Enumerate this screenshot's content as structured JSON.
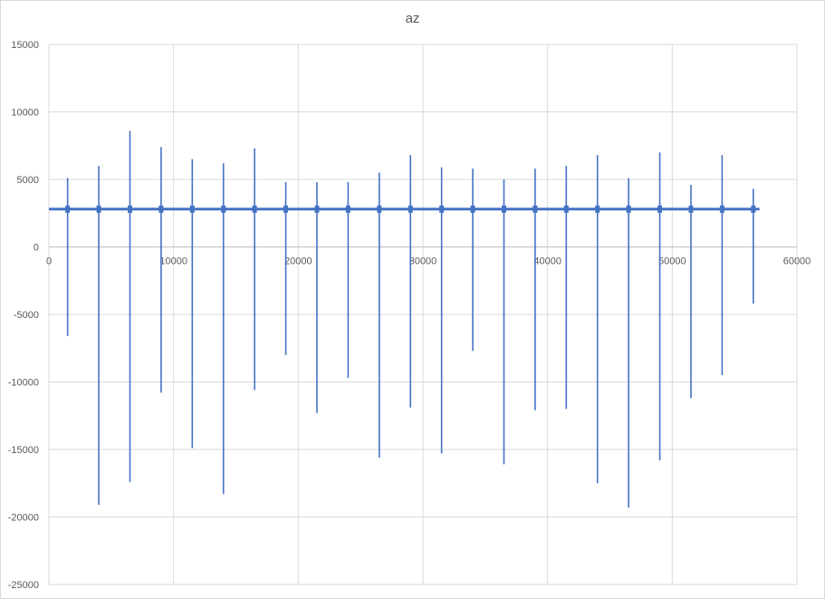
{
  "chart_data": {
    "type": "line",
    "title": "az",
    "xlabel": "",
    "ylabel": "",
    "xlim": [
      0,
      60000
    ],
    "ylim": [
      -25000,
      15000
    ],
    "x_ticks": [
      0,
      10000,
      20000,
      30000,
      40000,
      50000,
      60000
    ],
    "y_ticks": [
      15000,
      10000,
      5000,
      0,
      -5000,
      -10000,
      -15000,
      -20000,
      -25000
    ],
    "grid": true,
    "legend": "none",
    "color": "#4472c4",
    "baseline_value": 2800,
    "x_range": [
      0,
      57000
    ],
    "spikes": [
      {
        "x": 1500,
        "max": 5100,
        "min": -6600
      },
      {
        "x": 4000,
        "max": 6000,
        "min": -19100
      },
      {
        "x": 6500,
        "max": 8600,
        "min": -17400
      },
      {
        "x": 9000,
        "max": 7400,
        "min": -10800
      },
      {
        "x": 11500,
        "max": 6500,
        "min": -14900
      },
      {
        "x": 14000,
        "max": 6200,
        "min": -18300
      },
      {
        "x": 16500,
        "max": 7300,
        "min": -10600
      },
      {
        "x": 19000,
        "max": 4800,
        "min": -8000
      },
      {
        "x": 21500,
        "max": 4800,
        "min": -12300
      },
      {
        "x": 24000,
        "max": 4800,
        "min": -9700
      },
      {
        "x": 26500,
        "max": 5500,
        "min": -15600
      },
      {
        "x": 29000,
        "max": 6800,
        "min": -11900
      },
      {
        "x": 31500,
        "max": 5900,
        "min": -15300
      },
      {
        "x": 34000,
        "max": 5800,
        "min": -7700
      },
      {
        "x": 36500,
        "max": 5000,
        "min": -16100
      },
      {
        "x": 39000,
        "max": 5800,
        "min": -12100
      },
      {
        "x": 41500,
        "max": 6000,
        "min": -12000
      },
      {
        "x": 44000,
        "max": 6800,
        "min": -17500
      },
      {
        "x": 46500,
        "max": 5100,
        "min": -19300
      },
      {
        "x": 49000,
        "max": 7000,
        "min": -15800
      },
      {
        "x": 51500,
        "max": 4600,
        "min": -11200
      },
      {
        "x": 54000,
        "max": 6800,
        "min": -9500
      },
      {
        "x": 56500,
        "max": 4300,
        "min": -4200
      }
    ]
  }
}
